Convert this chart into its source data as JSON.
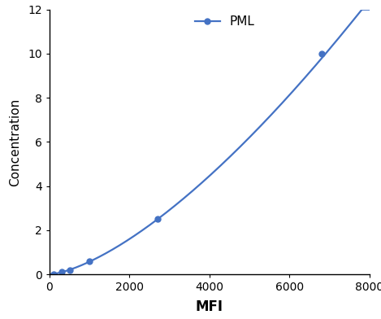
{
  "x": [
    0,
    100,
    300,
    500,
    1000,
    2700,
    6800
  ],
  "y": [
    0.0,
    0.02,
    0.1,
    0.18,
    0.6,
    2.5,
    10.0
  ],
  "line_color": "#4472C4",
  "marker_x": [
    100,
    300,
    500,
    1000,
    2700,
    6800
  ],
  "marker_y": [
    0.02,
    0.1,
    0.18,
    0.6,
    2.5,
    10.0
  ],
  "marker_style": "o",
  "marker_size": 5,
  "label": "PML",
  "xlabel": "MFI",
  "ylabel": "Concentration",
  "xlim": [
    0,
    8000
  ],
  "ylim": [
    0,
    12
  ],
  "xticks": [
    0,
    2000,
    4000,
    6000,
    8000
  ],
  "yticks": [
    0,
    2,
    4,
    6,
    8,
    10,
    12
  ],
  "xlabel_fontsize": 12,
  "ylabel_fontsize": 11,
  "tick_fontsize": 10,
  "legend_fontsize": 11,
  "background_color": "#ffffff",
  "linewidth": 1.6
}
